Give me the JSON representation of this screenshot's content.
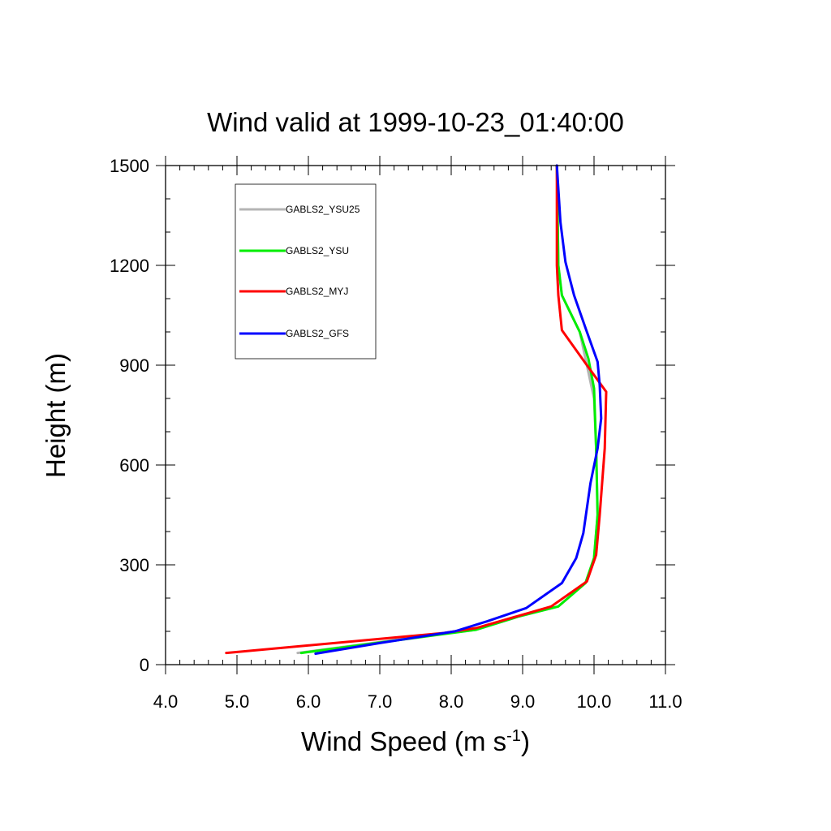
{
  "chart_data": {
    "type": "line",
    "title": "Wind valid at 1999-10-23_01:40:00",
    "xlabel": "Wind Speed (m s",
    "xlabel_sup": "-1",
    "xlabel_close": ")",
    "ylabel": "Height (m)",
    "xlim": [
      4.0,
      11.0
    ],
    "ylim": [
      0,
      1500
    ],
    "xticks": [
      4.0,
      5.0,
      6.0,
      7.0,
      8.0,
      9.0,
      10.0,
      11.0
    ],
    "xtick_labels": [
      "4.0",
      "5.0",
      "6.0",
      "7.0",
      "8.0",
      "9.0",
      "10.0",
      "11.0"
    ],
    "yticks": [
      0,
      300,
      600,
      900,
      1200,
      1500
    ],
    "ytick_labels": [
      "0",
      "300",
      "600",
      "900",
      "1200",
      "1500"
    ],
    "grid": false,
    "legend_position": "top-left",
    "series": [
      {
        "name": "GABLS2_YSU25",
        "color": "#b4b4b4",
        "points": [
          [
            5.85,
            35
          ],
          [
            6.9,
            65
          ],
          [
            7.85,
            92
          ],
          [
            8.35,
            105
          ],
          [
            8.95,
            145
          ],
          [
            9.5,
            175
          ],
          [
            9.88,
            245
          ],
          [
            10.0,
            320
          ],
          [
            10.05,
            450
          ],
          [
            10.03,
            650
          ],
          [
            10.0,
            800
          ],
          [
            9.9,
            900
          ],
          [
            9.8,
            1000
          ],
          [
            9.55,
            1110
          ],
          [
            9.5,
            1200
          ],
          [
            9.48,
            1500
          ]
        ]
      },
      {
        "name": "GABLS2_YSU",
        "color": "#00ee00",
        "points": [
          [
            5.9,
            35
          ],
          [
            6.95,
            65
          ],
          [
            7.9,
            92
          ],
          [
            8.35,
            105
          ],
          [
            8.95,
            145
          ],
          [
            9.5,
            175
          ],
          [
            9.88,
            245
          ],
          [
            10.0,
            320
          ],
          [
            10.05,
            450
          ],
          [
            10.03,
            650
          ],
          [
            10.0,
            830
          ],
          [
            9.92,
            920
          ],
          [
            9.8,
            1000
          ],
          [
            9.55,
            1110
          ],
          [
            9.5,
            1200
          ],
          [
            9.48,
            1500
          ]
        ]
      },
      {
        "name": "GABLS2_MYJ",
        "color": "#ff0000",
        "points": [
          [
            4.85,
            35
          ],
          [
            7.9,
            95
          ],
          [
            8.35,
            110
          ],
          [
            9.4,
            175
          ],
          [
            9.9,
            250
          ],
          [
            10.03,
            330
          ],
          [
            10.08,
            450
          ],
          [
            10.15,
            650
          ],
          [
            10.17,
            820
          ],
          [
            9.9,
            900
          ],
          [
            9.55,
            1005
          ],
          [
            9.5,
            1110
          ],
          [
            9.48,
            1200
          ],
          [
            9.48,
            1500
          ]
        ]
      },
      {
        "name": "GABLS2_GFS",
        "color": "#0000ff",
        "points": [
          [
            6.1,
            33
          ],
          [
            7.0,
            65
          ],
          [
            8.05,
            100
          ],
          [
            8.5,
            130
          ],
          [
            9.05,
            170
          ],
          [
            9.55,
            245
          ],
          [
            9.75,
            320
          ],
          [
            9.85,
            395
          ],
          [
            9.95,
            545
          ],
          [
            10.05,
            650
          ],
          [
            10.1,
            740
          ],
          [
            10.08,
            840
          ],
          [
            10.05,
            910
          ],
          [
            9.9,
            1000
          ],
          [
            9.72,
            1110
          ],
          [
            9.6,
            1210
          ],
          [
            9.53,
            1330
          ],
          [
            9.48,
            1500
          ]
        ]
      }
    ]
  }
}
